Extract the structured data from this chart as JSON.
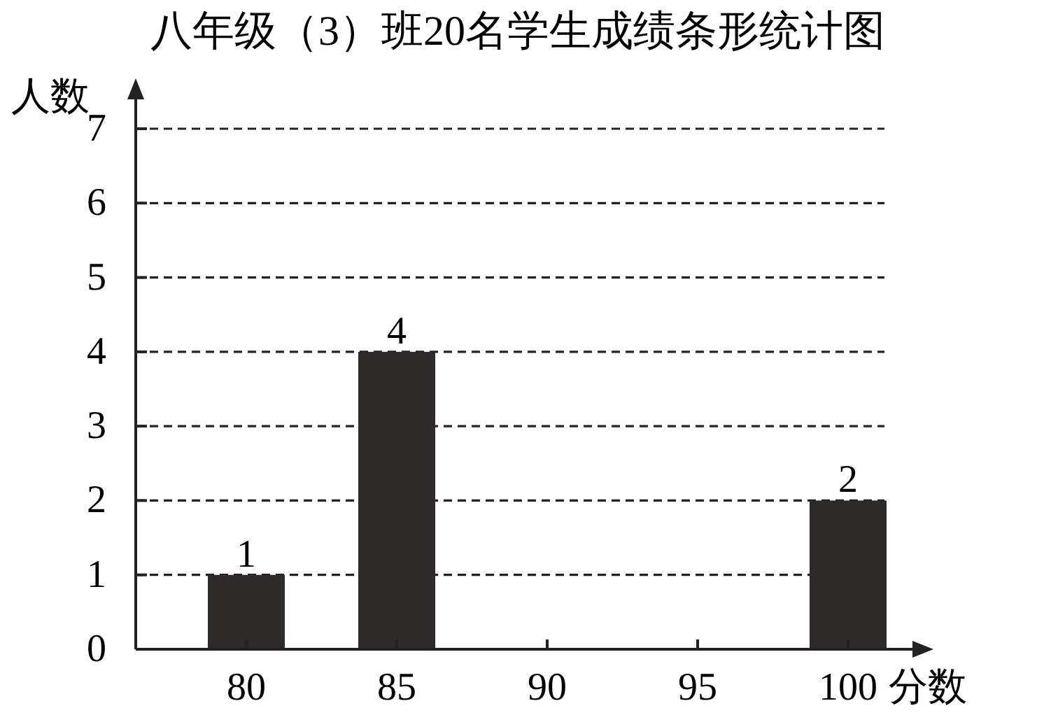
{
  "chart_data": {
    "type": "bar",
    "title": "八年级（3）班20名学生成绩条形统计图",
    "xlabel": "分数",
    "ylabel": "人数",
    "categories": [
      "80",
      "85",
      "90",
      "95",
      "100"
    ],
    "values": [
      1,
      4,
      null,
      null,
      2
    ],
    "color": "#2e2a2a",
    "ylim": [
      0,
      7
    ],
    "yticks": [
      0,
      1,
      2,
      3,
      4,
      5,
      6,
      7
    ],
    "grid": "y",
    "data_labels": true
  }
}
